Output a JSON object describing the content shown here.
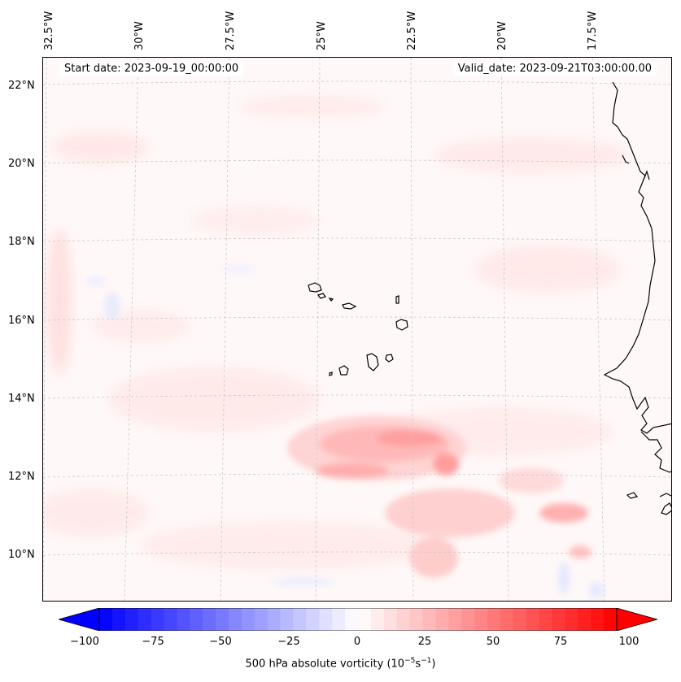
{
  "map": {
    "start_date": "Start date: 2023-09-19_00:00:00",
    "valid_date": "Valid_date: 2023-09-21T03:00:00.00",
    "lon_labels": [
      "32.5°W",
      "30°W",
      "27.5°W",
      "25°W",
      "22.5°W",
      "20°W",
      "17.5°W"
    ],
    "lat_labels": [
      "22°N",
      "20°N",
      "18°N",
      "16°N",
      "14°N",
      "12°N",
      "10°N"
    ],
    "colors": {
      "ocean_background": "#fff8f8",
      "coastline": "#000000",
      "gridline": "#c8c8c8"
    }
  },
  "colorbar": {
    "ticks": [
      "−100",
      "−75",
      "−50",
      "−25",
      "0",
      "25",
      "50",
      "75",
      "100"
    ],
    "label_text": "500 hPa absolute vorticity (10",
    "label_sup1": "−5",
    "label_mid": "s",
    "label_sup2": "−1",
    "label_end": ")",
    "min_color": "#0000ff",
    "mid_color": "#ffffff",
    "max_color": "#ff0000",
    "levels": 40
  }
}
